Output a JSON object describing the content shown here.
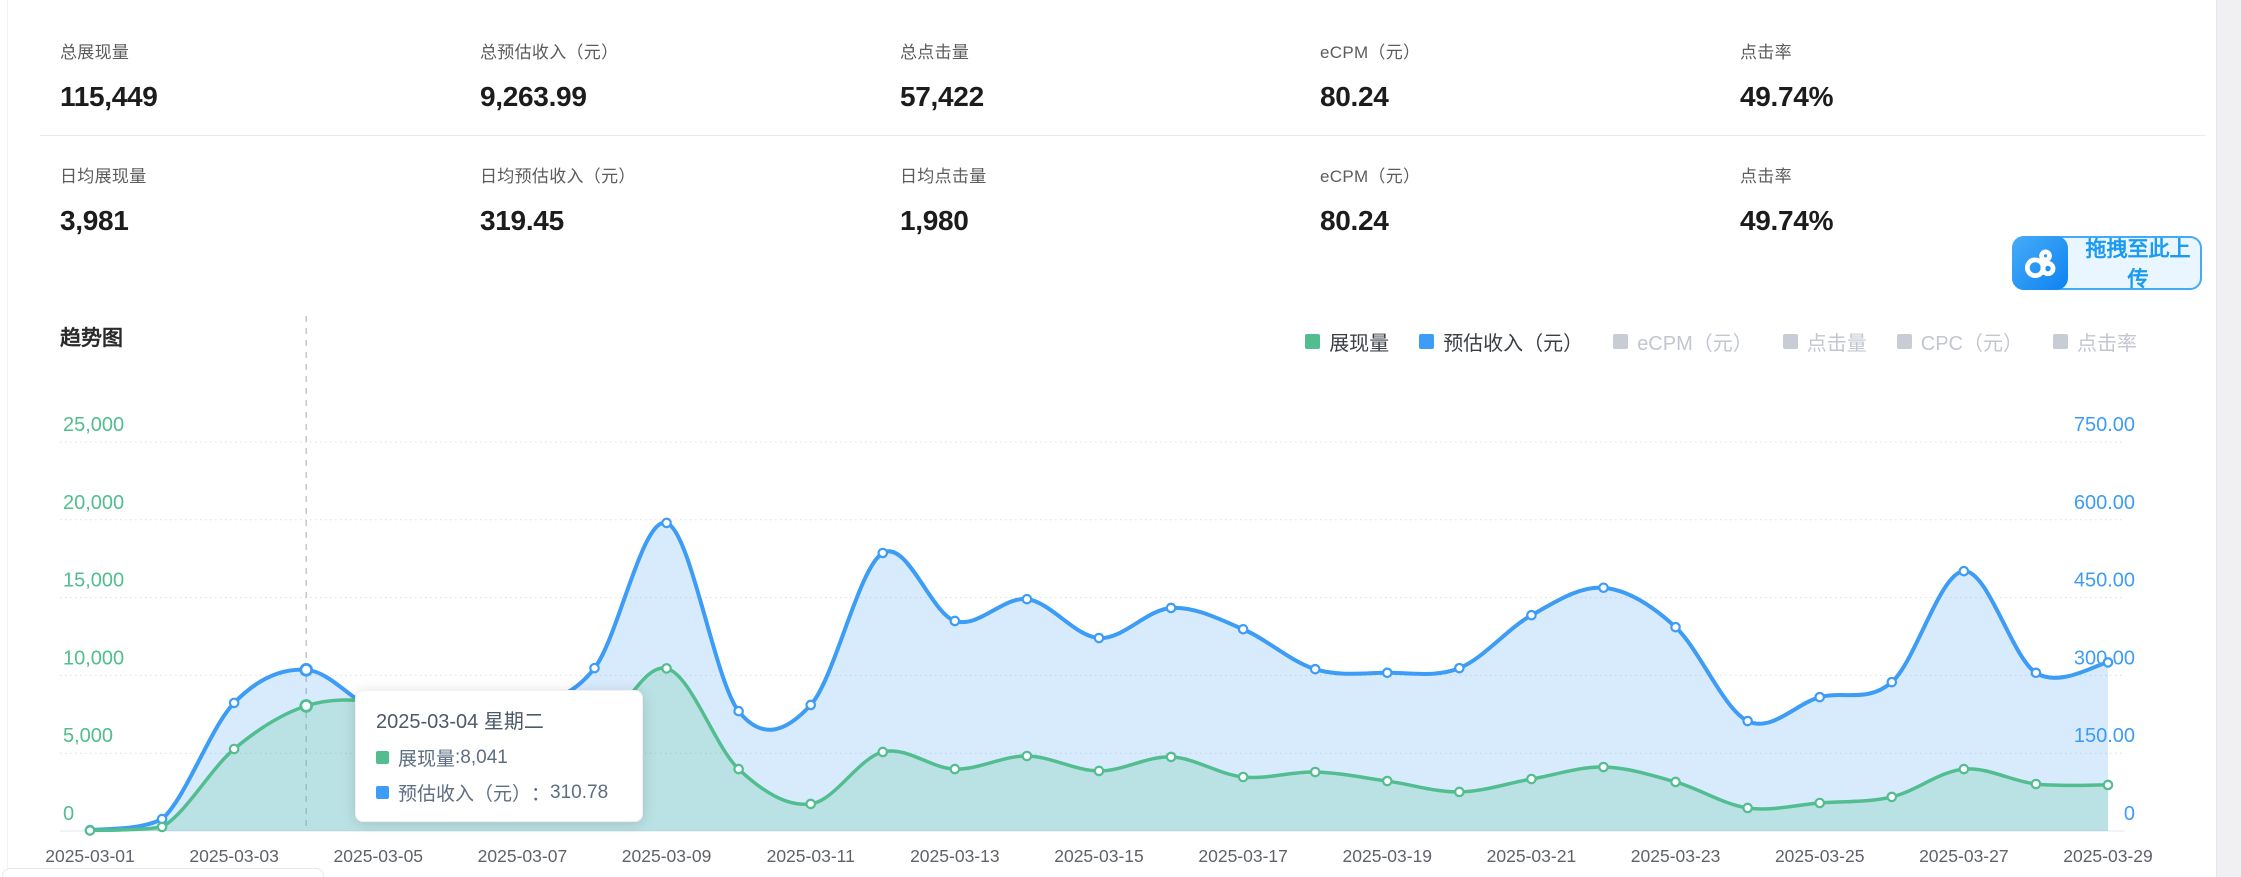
{
  "stats": {
    "rows": [
      {
        "cells": [
          {
            "label": "总展现量",
            "value": "115,449"
          },
          {
            "label": "总预估收入（元）",
            "value": "9,263.99"
          },
          {
            "label": "总点击量",
            "value": "57,422"
          },
          {
            "label": "eCPM（元）",
            "value": "80.24"
          },
          {
            "label": "点击率",
            "value": "49.74%"
          }
        ]
      },
      {
        "cells": [
          {
            "label": "日均展现量",
            "value": "3,981"
          },
          {
            "label": "日均预估收入（元）",
            "value": "319.45"
          },
          {
            "label": "日均点击量",
            "value": "1,980"
          },
          {
            "label": "eCPM（元）",
            "value": "80.24"
          },
          {
            "label": "点击率",
            "value": "49.74%"
          }
        ]
      }
    ]
  },
  "upload_widget": {
    "label": "拖拽至此上传",
    "icon": "baidu-netdisk-cloud-icon",
    "accent": "#1b9bf0"
  },
  "trend": {
    "title": "趋势图",
    "legend": [
      {
        "label": "展现量",
        "color": "#52bd8f",
        "active": true
      },
      {
        "label": "预估收入（元）",
        "color": "#3d9cf5",
        "active": true
      },
      {
        "label": "eCPM（元）",
        "color": "#c8ccd4",
        "active": false
      },
      {
        "label": "点击量",
        "color": "#c8ccd4",
        "active": false
      },
      {
        "label": "CPC（元）",
        "color": "#c8ccd4",
        "active": false
      },
      {
        "label": "点击率",
        "color": "#c8ccd4",
        "active": false
      }
    ]
  },
  "chart_data": {
    "type": "area",
    "title": "趋势图",
    "x": [
      "2025-03-01",
      "2025-03-02",
      "2025-03-03",
      "2025-03-04",
      "2025-03-05",
      "2025-03-06",
      "2025-03-07",
      "2025-03-08",
      "2025-03-09",
      "2025-03-10",
      "2025-03-11",
      "2025-03-12",
      "2025-03-13",
      "2025-03-14",
      "2025-03-15",
      "2025-03-16",
      "2025-03-17",
      "2025-03-18",
      "2025-03-19",
      "2025-03-20",
      "2025-03-21",
      "2025-03-22",
      "2025-03-23",
      "2025-03-24",
      "2025-03-25",
      "2025-03-26",
      "2025-03-27",
      "2025-03-28",
      "2025-03-29"
    ],
    "x_tick_every": 2,
    "series": [
      {
        "name": "展现量",
        "axis": "left",
        "color": "#52bd8f",
        "fill": "rgba(82,189,143,0.22)",
        "values": [
          30,
          260,
          5270,
          8041,
          8290,
          7000,
          4900,
          6100,
          10450,
          3980,
          1740,
          5080,
          3980,
          4820,
          3860,
          4760,
          3470,
          3790,
          3210,
          2510,
          3340,
          4110,
          3150,
          1480,
          1800,
          2190,
          3980,
          3020,
          2960
        ]
      },
      {
        "name": "预估收入（元）",
        "axis": "right",
        "color": "#3d9cf5",
        "fill": "rgba(61,156,245,0.20)",
        "values": [
          1.5,
          23,
          247,
          310.78,
          230,
          215,
          235,
          314,
          594,
          231,
          243,
          536,
          405,
          447,
          372,
          430,
          389,
          312,
          305,
          314,
          416,
          469,
          393,
          212,
          258,
          287,
          501,
          305,
          325
        ]
      }
    ],
    "left_axis": {
      "min": 0,
      "max": 25000,
      "tick_labels": [
        "0",
        "5,000",
        "10,000",
        "15,000",
        "20,000",
        "25,000"
      ],
      "color": "#52bd8f"
    },
    "right_axis": {
      "min": 0,
      "max": 750,
      "tick_labels": [
        "0",
        "150.00",
        "300.00",
        "450.00",
        "600.00",
        "750.00"
      ],
      "color": "#3d9cf5"
    },
    "grid": true,
    "legend_position": "top-right",
    "hover": {
      "index": 3,
      "date": "2025-03-04"
    }
  },
  "tooltip": {
    "title": "2025-03-04 星期二",
    "rows": [
      {
        "label": "展现量",
        "separator": ": ",
        "value": "8,041",
        "color": "#52bd8f"
      },
      {
        "label": "预估收入（元）",
        "separator": "：",
        "value": "310.78",
        "color": "#3d9cf5"
      }
    ]
  }
}
